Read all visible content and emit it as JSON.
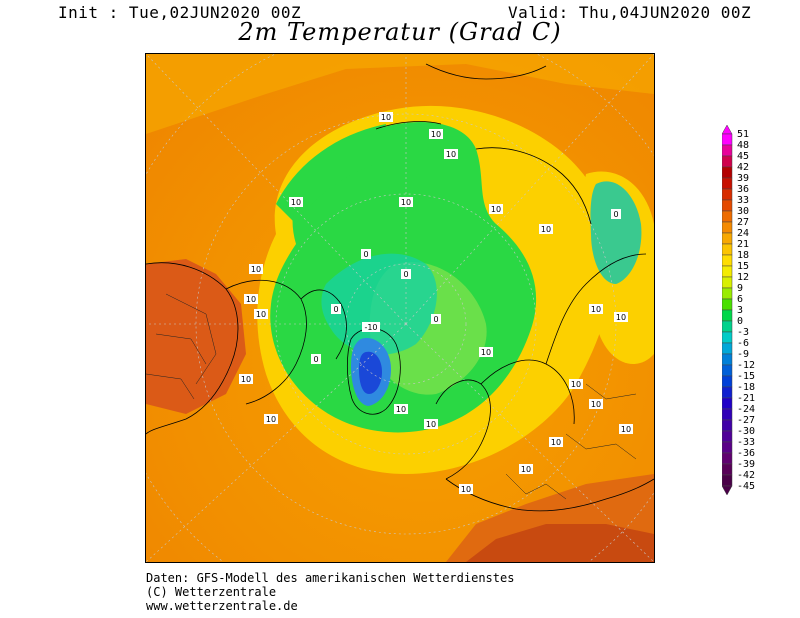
{
  "header": {
    "init": "Init : Tue,02JUN2020 00Z",
    "valid": "Valid: Thu,04JUN2020 00Z",
    "title": "2m Temperatur (Grad C)"
  },
  "map": {
    "contour_label": "10",
    "zero_label": "0",
    "neg_label": "-10"
  },
  "legend": {
    "labels": [
      "51",
      "48",
      "45",
      "42",
      "39",
      "36",
      "33",
      "30",
      "27",
      "24",
      "21",
      "18",
      "15",
      "12",
      "9",
      "6",
      "3",
      "0",
      "-3",
      "-6",
      "-9",
      "-12",
      "-15",
      "-18",
      "-21",
      "-24",
      "-27",
      "-30",
      "-33",
      "-36",
      "-39",
      "-42",
      "-45"
    ],
    "colors": [
      "#ff00ff",
      "#e8009a",
      "#d0004c",
      "#b40000",
      "#c81000",
      "#d82c00",
      "#e44a00",
      "#ee6c00",
      "#f48a00",
      "#f8a800",
      "#fcc400",
      "#ffdd00",
      "#f4ec00",
      "#d8f000",
      "#9aec00",
      "#4ae000",
      "#00d84a",
      "#00d28c",
      "#00ccc8",
      "#00a8d8",
      "#0080d8",
      "#0060d8",
      "#0040d8",
      "#1020d0",
      "#2000c8",
      "#3000b8",
      "#4000a8",
      "#500098",
      "#5a0088",
      "#600070",
      "#580058",
      "#4a0048"
    ]
  },
  "footer": {
    "line1": "Daten: GFS-Modell des amerikanischen Wetterdienstes",
    "line2": "(C) Wetterzentrale",
    "line3": "www.wetterzentrale.de"
  }
}
